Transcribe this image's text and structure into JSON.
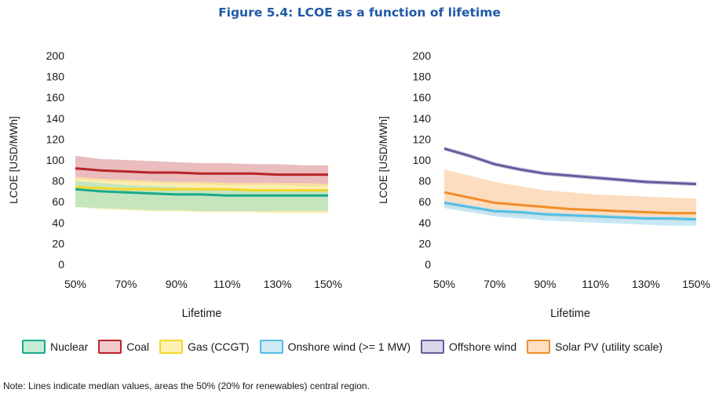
{
  "figure_title": "Figure 5.4: LCOE as a function of lifetime",
  "note": "Note: Lines indicate median values, areas the 50% (20% for renewables) central region.",
  "legend": [
    {
      "label": "Nuclear",
      "fill": "#c4ecd6",
      "stroke": "#19a98a"
    },
    {
      "label": "Coal",
      "fill": "#f1c9cb",
      "stroke": "#b8232a"
    },
    {
      "label": "Gas (CCGT)",
      "fill": "#fdf2b4",
      "stroke": "#f3d62b"
    },
    {
      "label": "Onshore wind (>= 1 MW)",
      "fill": "#cfe9f5",
      "stroke": "#55bde3"
    },
    {
      "label": "Offshore wind",
      "fill": "#dcd6ea",
      "stroke": "#6a5a9d"
    },
    {
      "label": "Solar PV (utility scale)",
      "fill": "#fde0c4",
      "stroke": "#f08d2a"
    }
  ],
  "chart_data": [
    {
      "type": "area",
      "xlabel": "Lifetime",
      "ylabel": "LCOE [USD/MWh]",
      "ylim": [
        0,
        200
      ],
      "yticks": [
        "0",
        "20",
        "40",
        "60",
        "80",
        "100",
        "120",
        "140",
        "160",
        "180",
        "200"
      ],
      "x": [
        50,
        60,
        70,
        80,
        90,
        100,
        110,
        120,
        130,
        140,
        150
      ],
      "xticks": [
        "50%",
        "70%",
        "90%",
        "110%",
        "130%",
        "150%"
      ],
      "series": [
        {
          "name": "Coal",
          "fill": "#e4a9ab",
          "stroke": "#b8232a",
          "median": [
            92,
            90,
            89,
            88,
            88,
            87,
            87,
            87,
            86,
            86,
            86
          ],
          "upper": [
            104,
            101,
            100,
            99,
            98,
            97,
            97,
            96,
            96,
            95,
            95
          ],
          "lower": [
            82,
            80,
            79,
            78,
            77,
            77,
            76,
            76,
            76,
            75,
            75
          ]
        },
        {
          "name": "Gas (CCGT)",
          "fill": "#fbe99a",
          "stroke": "#f3d62b",
          "median": [
            74,
            73,
            72,
            72,
            72,
            72,
            72,
            71,
            71,
            71,
            71
          ],
          "upper": [
            84,
            82,
            81,
            80,
            79,
            79,
            78,
            78,
            78,
            78,
            77
          ],
          "lower": [
            55,
            53,
            52,
            51,
            51,
            50,
            50,
            50,
            49,
            49,
            49
          ]
        },
        {
          "name": "Nuclear",
          "fill": "#b5e3c2",
          "stroke": "#19a98a",
          "median": [
            72,
            70,
            69,
            68,
            67,
            67,
            66,
            66,
            66,
            66,
            66
          ],
          "upper": [
            80,
            78,
            76,
            75,
            74,
            73,
            72,
            72,
            72,
            71,
            71
          ],
          "lower": [
            55,
            54,
            53,
            52,
            52,
            51,
            51,
            51,
            51,
            51,
            51
          ]
        }
      ]
    },
    {
      "type": "area",
      "xlabel": "Lifetime",
      "ylabel": "LCOE [USD/MWh]",
      "ylim": [
        0,
        200
      ],
      "yticks": [
        "0",
        "20",
        "40",
        "60",
        "80",
        "100",
        "120",
        "140",
        "160",
        "180",
        "200"
      ],
      "x": [
        50,
        60,
        70,
        80,
        90,
        100,
        110,
        120,
        130,
        140,
        150
      ],
      "xticks": [
        "50%",
        "70%",
        "90%",
        "110%",
        "130%",
        "150%"
      ],
      "series": [
        {
          "name": "Offshore wind",
          "fill": "#cbc3e0",
          "stroke": "#6a5a9d",
          "median": [
            111,
            104,
            96,
            91,
            87,
            85,
            83,
            81,
            79,
            78,
            77
          ],
          "upper": [
            113,
            106,
            98,
            93,
            89,
            87,
            85,
            83,
            81,
            80,
            79
          ],
          "lower": [
            109,
            102,
            94,
            89,
            85,
            83,
            81,
            79,
            77,
            76,
            75
          ]
        },
        {
          "name": "Solar PV (utility scale)",
          "fill": "#fcd3ad",
          "stroke": "#f08d2a",
          "median": [
            69,
            64,
            59,
            57,
            55,
            53,
            52,
            51,
            50,
            49,
            49
          ],
          "upper": [
            91,
            85,
            79,
            75,
            71,
            69,
            67,
            66,
            65,
            64,
            63
          ],
          "lower": [
            56,
            52,
            48,
            46,
            45,
            44,
            43,
            42,
            42,
            41,
            41
          ]
        },
        {
          "name": "Onshore wind (>= 1 MW)",
          "fill": "#b9e1f2",
          "stroke": "#55bde3",
          "median": [
            59,
            55,
            51,
            50,
            48,
            47,
            46,
            45,
            44,
            44,
            43
          ],
          "upper": [
            61,
            57,
            53,
            52,
            50,
            49,
            48,
            47,
            46,
            46,
            45
          ],
          "lower": [
            54,
            50,
            46,
            44,
            42,
            41,
            40,
            39,
            38,
            37,
            37
          ]
        }
      ]
    }
  ]
}
